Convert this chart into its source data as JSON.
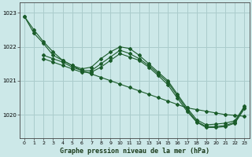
{
  "title": "Graphe pression niveau de la mer (hPa)",
  "bg_color": "#cce8e8",
  "grid_color": "#aacccc",
  "line_color": "#1a5c2a",
  "xlim": [
    -0.5,
    23.5
  ],
  "ylim": [
    1019.3,
    1023.3
  ],
  "yticks": [
    1020,
    1021,
    1022,
    1023
  ],
  "xticks": [
    0,
    1,
    2,
    3,
    4,
    5,
    6,
    7,
    8,
    9,
    10,
    11,
    12,
    13,
    14,
    15,
    16,
    17,
    18,
    19,
    20,
    21,
    22,
    23
  ],
  "series": [
    {
      "x": [
        0,
        1,
        2,
        3,
        4,
        5,
        6,
        7,
        8,
        9,
        10,
        11,
        12,
        13,
        14,
        15,
        16,
        17,
        18,
        19,
        20,
        21,
        22,
        23
      ],
      "y": [
        1022.9,
        1022.5,
        1022.15,
        1021.85,
        1021.6,
        1021.45,
        1021.3,
        1021.2,
        1021.1,
        1021.0,
        1020.9,
        1020.8,
        1020.7,
        1020.6,
        1020.5,
        1020.4,
        1020.3,
        1020.2,
        1020.15,
        1020.1,
        1020.05,
        1020.0,
        1019.98,
        1019.95
      ]
    },
    {
      "x": [
        0,
        1,
        2,
        3,
        4,
        5,
        6,
        7,
        8,
        9,
        10,
        11,
        12,
        13,
        14,
        15,
        16,
        17,
        18,
        19,
        20,
        21,
        22,
        23
      ],
      "y": [
        1022.9,
        1022.4,
        1022.1,
        1021.75,
        1021.6,
        1021.45,
        1021.35,
        1021.4,
        1021.65,
        1021.85,
        1022.0,
        1021.95,
        1021.75,
        1021.5,
        1021.25,
        1021.0,
        1020.6,
        1020.2,
        1019.85,
        1019.7,
        1019.72,
        1019.75,
        1019.82,
        1020.25
      ]
    },
    {
      "x": [
        2,
        3,
        4,
        5,
        6,
        7,
        8,
        9,
        10,
        11,
        12,
        13,
        14,
        15,
        16,
        17,
        18,
        19,
        20,
        21,
        22,
        23
      ],
      "y": [
        1021.75,
        1021.65,
        1021.55,
        1021.4,
        1021.3,
        1021.3,
        1021.5,
        1021.7,
        1021.9,
        1021.8,
        1021.65,
        1021.45,
        1021.2,
        1020.95,
        1020.55,
        1020.15,
        1019.8,
        1019.65,
        1019.65,
        1019.68,
        1019.78,
        1020.22
      ]
    },
    {
      "x": [
        2,
        3,
        4,
        5,
        6,
        7,
        8,
        9,
        10,
        11,
        12,
        13,
        14,
        15,
        16,
        17,
        18,
        19,
        20,
        21,
        22,
        23
      ],
      "y": [
        1021.65,
        1021.55,
        1021.45,
        1021.35,
        1021.25,
        1021.25,
        1021.4,
        1021.6,
        1021.8,
        1021.7,
        1021.6,
        1021.4,
        1021.15,
        1020.88,
        1020.48,
        1020.1,
        1019.78,
        1019.62,
        1019.62,
        1019.65,
        1019.75,
        1020.18
      ]
    }
  ]
}
